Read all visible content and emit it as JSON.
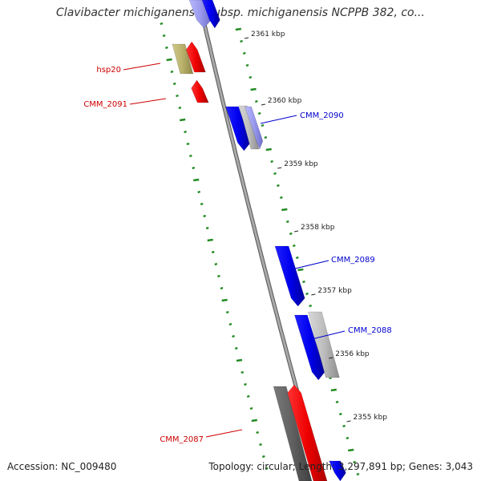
{
  "title": "Clavibacter michiganensis subsp. michiganensis NCPPB 382, co...",
  "footer": {
    "accession": "Accession: NC_009480",
    "summary": "Topology: circular; Length: 3,297,891 bp; Genes: 3,043"
  },
  "ticks": [
    "2361 kbp",
    "2360 kbp",
    "2359 kbp",
    "2358 kbp",
    "2357 kbp",
    "2356 kbp",
    "2355 kbp"
  ],
  "gene_labels": [
    {
      "text": "hsp20",
      "strand": "reverse"
    },
    {
      "text": "CMM_2091",
      "strand": "reverse"
    },
    {
      "text": "CMM_2090",
      "strand": "forward"
    },
    {
      "text": "CMM_2089",
      "strand": "forward"
    },
    {
      "text": "CMM_2088",
      "strand": "forward"
    },
    {
      "text": "CMM_2087",
      "strand": "reverse"
    }
  ],
  "colors": {
    "forward_label": "#0000cc",
    "reverse_label": "#cc0000",
    "forward_gene": "#0000ff",
    "reverse_gene": "#ff0000",
    "gc_dots": "#228b22",
    "backbone": "#808080"
  }
}
